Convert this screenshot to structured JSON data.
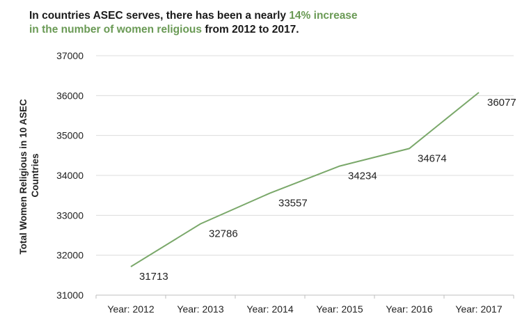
{
  "title": {
    "part1": "In countries ASEC serves, there has been a nearly ",
    "highlight1": "14% increase",
    "highlight2": "in the number of women religious",
    "part2": " from 2012 to 2017.",
    "highlight_color": "#6a9a55"
  },
  "chart_data": {
    "type": "line",
    "title": "In countries ASEC serves, there has been a nearly 14% increase in the number of women religious from 2012 to 2017.",
    "xlabel": "",
    "ylabel_lines": [
      "Total Women Religious in 10 ASEC",
      "Countries"
    ],
    "categories": [
      "Year: 2012",
      "Year: 2013",
      "Year: 2014",
      "Year: 2015",
      "Year: 2016",
      "Year: 2017"
    ],
    "values": [
      31713,
      32786,
      33557,
      34234,
      34674,
      36077
    ],
    "data_labels": [
      "31713",
      "32786",
      "33557",
      "34234",
      "34674",
      "36077"
    ],
    "ylim": [
      31000,
      37000
    ],
    "yticks": [
      31000,
      32000,
      33000,
      34000,
      35000,
      36000,
      37000
    ],
    "ytick_labels": [
      "31000",
      "32000",
      "33000",
      "34000",
      "35000",
      "36000",
      "37000"
    ],
    "grid": true,
    "line_color": "#7aa86a",
    "grid_color": "#dcdcdc"
  }
}
